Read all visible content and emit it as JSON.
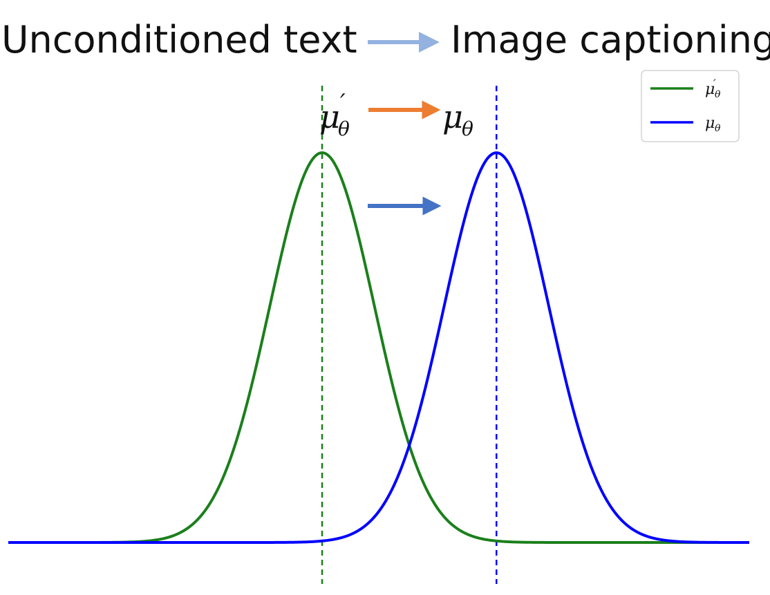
{
  "header": {
    "left_text": "Unconditioned text",
    "right_text": "Image captioning",
    "arrow_color": "#94b2e0"
  },
  "labels": {
    "mu_prime": "μ",
    "mu_prime_sub": "θ",
    "mu_prime_mark": "′",
    "mu": "μ",
    "mu_sub": "θ",
    "orange_arrow_color": "#ed7d31",
    "blue_arrow_color": "#4472c4"
  },
  "legend": {
    "items": [
      {
        "symbol": "μ",
        "mark": "′",
        "sub": "θ",
        "color": "#1b7f1b"
      },
      {
        "symbol": "μ",
        "mark": "",
        "sub": "θ",
        "color": "#0000ff"
      }
    ]
  },
  "chart_data": {
    "type": "line",
    "series": [
      {
        "color": "#1b7f1b",
        "mean": -1.0,
        "sd": 0.6,
        "peak": 1.0,
        "marker_line": "dashed"
      },
      {
        "color": "#0000ff",
        "mean": 1.0,
        "sd": 0.6,
        "peak": 1.0,
        "marker_line": "dashed"
      }
    ],
    "xlim": [
      -4.6,
      3.9
    ],
    "ylim": [
      0,
      1.0
    ],
    "grid": false,
    "legend_position": "top-right"
  }
}
